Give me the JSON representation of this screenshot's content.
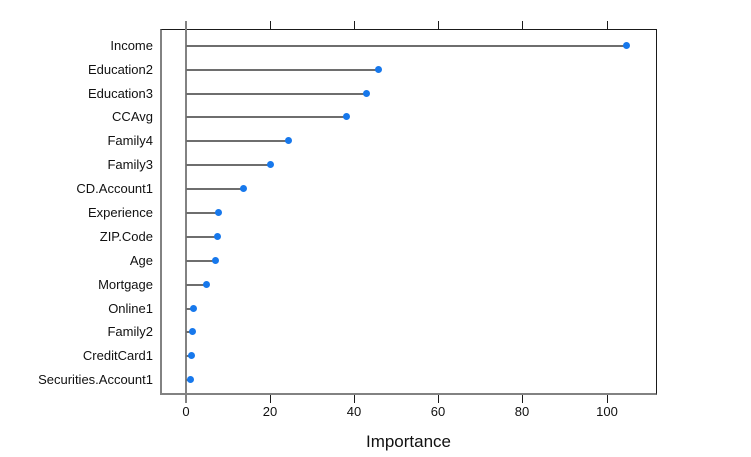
{
  "chart_data": {
    "type": "scatter",
    "style": "horizontal-lollipop-dotplot",
    "orientation": "horizontal",
    "title": "",
    "xlabel": "Importance",
    "ylabel": "",
    "categories": [
      "Income",
      "Education2",
      "Education3",
      "CCAvg",
      "Family4",
      "Family3",
      "CD.Account1",
      "Experience",
      "ZIP.Code",
      "Age",
      "Mortgage",
      "Online1",
      "Family2",
      "CreditCard1",
      "Securities.Account1"
    ],
    "values": [
      104.6,
      45.7,
      42.8,
      38.1,
      24.2,
      20.0,
      13.6,
      7.6,
      7.4,
      7.0,
      4.7,
      1.6,
      1.5,
      1.1,
      1.0
    ],
    "xticks": [
      0,
      20,
      40,
      60,
      80,
      100
    ],
    "xtick_labels": [
      "0",
      "20",
      "40",
      "60",
      "80",
      "100"
    ],
    "xlim": [
      -5.7,
      112.0
    ],
    "grid": false,
    "legend": "none",
    "ticks_position": "top-and-bottom",
    "zero_reference_line": true,
    "colors": {
      "point": "#1778ec",
      "needle_line": "#6e6e6e",
      "zero_line": "#828282",
      "box_dark": "#1a1a1a",
      "box_gray": "#828282",
      "text": "#111111",
      "background": "#ffffff"
    }
  }
}
